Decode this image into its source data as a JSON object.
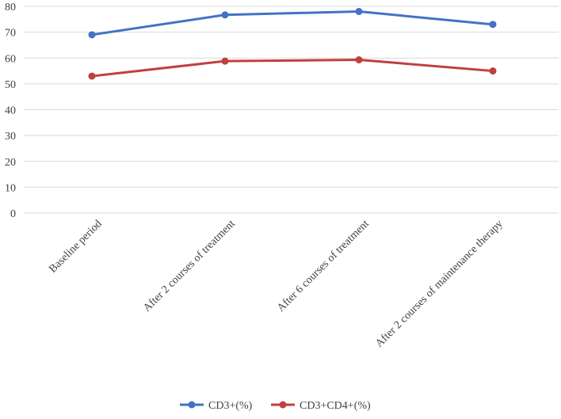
{
  "chart_data": {
    "type": "line",
    "title": "",
    "xlabel": "",
    "ylabel": "",
    "ylim": [
      0,
      80
    ],
    "yticks": [
      0,
      10,
      20,
      30,
      40,
      50,
      60,
      70,
      80
    ],
    "grid": true,
    "legend_position": "bottom",
    "categories": [
      "Baseline period",
      "After 2 courses of treatment",
      "After 6 courses of treatment",
      "After 2 courses of maintenance therapy"
    ],
    "series": [
      {
        "name": "CD3+(%)",
        "color": "#4472c4",
        "values": [
          69,
          76.7,
          78,
          73
        ]
      },
      {
        "name": "CD3+CD4+(%)",
        "color": "#c0403d",
        "values": [
          53,
          58.8,
          59.3,
          55
        ]
      }
    ]
  }
}
